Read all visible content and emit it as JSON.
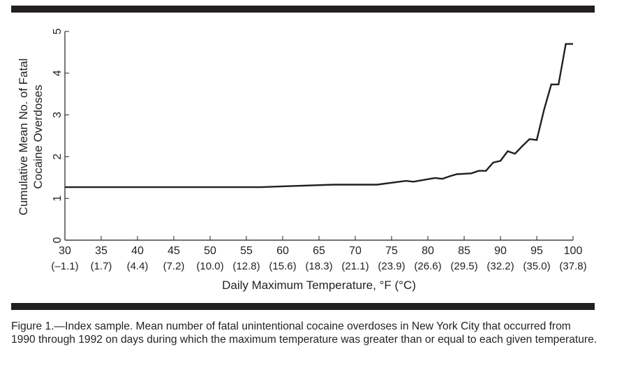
{
  "chart_data": {
    "type": "line",
    "title": "",
    "xlabel": "Daily Maximum Temperature, °F (°C)",
    "ylabel": [
      "Cumulative Mean No. of Fatal",
      "Cocaine Overdoses"
    ],
    "xlim": [
      30,
      100
    ],
    "ylim": [
      0,
      5
    ],
    "grid": false,
    "x_ticks": [
      {
        "f": "30",
        "c": "(–1.1)"
      },
      {
        "f": "35",
        "c": "(1.7)"
      },
      {
        "f": "40",
        "c": "(4.4)"
      },
      {
        "f": "45",
        "c": "(7.2)"
      },
      {
        "f": "50",
        "c": "(10.0)"
      },
      {
        "f": "55",
        "c": "(12.8)"
      },
      {
        "f": "60",
        "c": "(15.6)"
      },
      {
        "f": "65",
        "c": "(18.3)"
      },
      {
        "f": "70",
        "c": "(21.1)"
      },
      {
        "f": "75",
        "c": "(23.9)"
      },
      {
        "f": "80",
        "c": "(26.6)"
      },
      {
        "f": "85",
        "c": "(29.5)"
      },
      {
        "f": "90",
        "c": "(32.2)"
      },
      {
        "f": "95",
        "c": "(35.0)"
      },
      {
        "f": "100",
        "c": "(37.8)"
      }
    ],
    "y_ticks": [
      "0",
      "1",
      "2",
      "3",
      "4",
      "5"
    ],
    "series": [
      {
        "name": "Cumulative mean fatal cocaine overdoses",
        "x": [
          30,
          57,
          60,
          67,
          73,
          77,
          78,
          80,
          81,
          82,
          83,
          84,
          85,
          86,
          87,
          88,
          89,
          90,
          91,
          92,
          93,
          94,
          95,
          96,
          97,
          98,
          99,
          100
        ],
        "y": [
          1.27,
          1.27,
          1.29,
          1.33,
          1.33,
          1.42,
          1.4,
          1.46,
          1.49,
          1.47,
          1.53,
          1.58,
          1.59,
          1.6,
          1.66,
          1.66,
          1.86,
          1.9,
          2.13,
          2.07,
          2.25,
          2.42,
          2.4,
          3.12,
          3.73,
          3.73,
          4.7,
          4.7
        ]
      }
    ]
  },
  "caption": "Figure 1.—Index sample. Mean number of fatal unintentional cocaine overdoses in New York City that occurred from 1990 through 1992 on days during which the maximum temperature was greater than or equal to each given temperature."
}
